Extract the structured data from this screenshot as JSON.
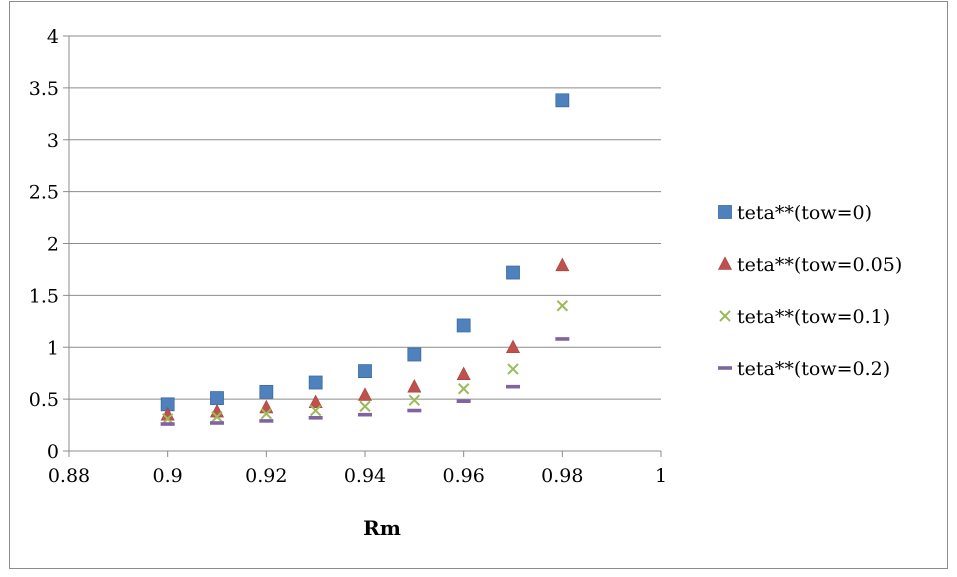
{
  "chart_data": {
    "type": "scatter",
    "title": "",
    "xlabel": "Rm",
    "ylabel": "",
    "xlim": [
      0.88,
      1
    ],
    "ylim": [
      0,
      4
    ],
    "x_ticks": [
      "0.88",
      "0.9",
      "0.92",
      "0.94",
      "0.96",
      "0.98",
      "1"
    ],
    "y_ticks": [
      "0",
      "0.5",
      "1",
      "1.5",
      "2",
      "2.5",
      "3",
      "3.5",
      "4"
    ],
    "grid": "horizontal",
    "legend": "right",
    "x": [
      0.9,
      0.91,
      0.92,
      0.93,
      0.94,
      0.95,
      0.96,
      0.97,
      0.98
    ],
    "series": [
      {
        "name": "teta**(tow=0)",
        "marker": "square",
        "color": "#4f81bd",
        "values": [
          0.45,
          0.51,
          0.57,
          0.66,
          0.77,
          0.93,
          1.21,
          1.72,
          3.38
        ]
      },
      {
        "name": "teta**(tow=0.05)",
        "marker": "triangle",
        "color": "#c0504d",
        "values": [
          0.35,
          0.38,
          0.42,
          0.47,
          0.54,
          0.62,
          0.74,
          1.0,
          1.79
        ]
      },
      {
        "name": "teta**(tow=0.1)",
        "marker": "x",
        "color": "#9bbb59",
        "values": [
          0.31,
          0.33,
          0.36,
          0.39,
          0.43,
          0.49,
          0.6,
          0.79,
          1.4
        ]
      },
      {
        "name": "teta**(tow=0.2)",
        "marker": "dash",
        "color": "#8064a2",
        "values": [
          0.26,
          0.27,
          0.29,
          0.32,
          0.35,
          0.39,
          0.48,
          0.62,
          1.08
        ]
      }
    ]
  }
}
